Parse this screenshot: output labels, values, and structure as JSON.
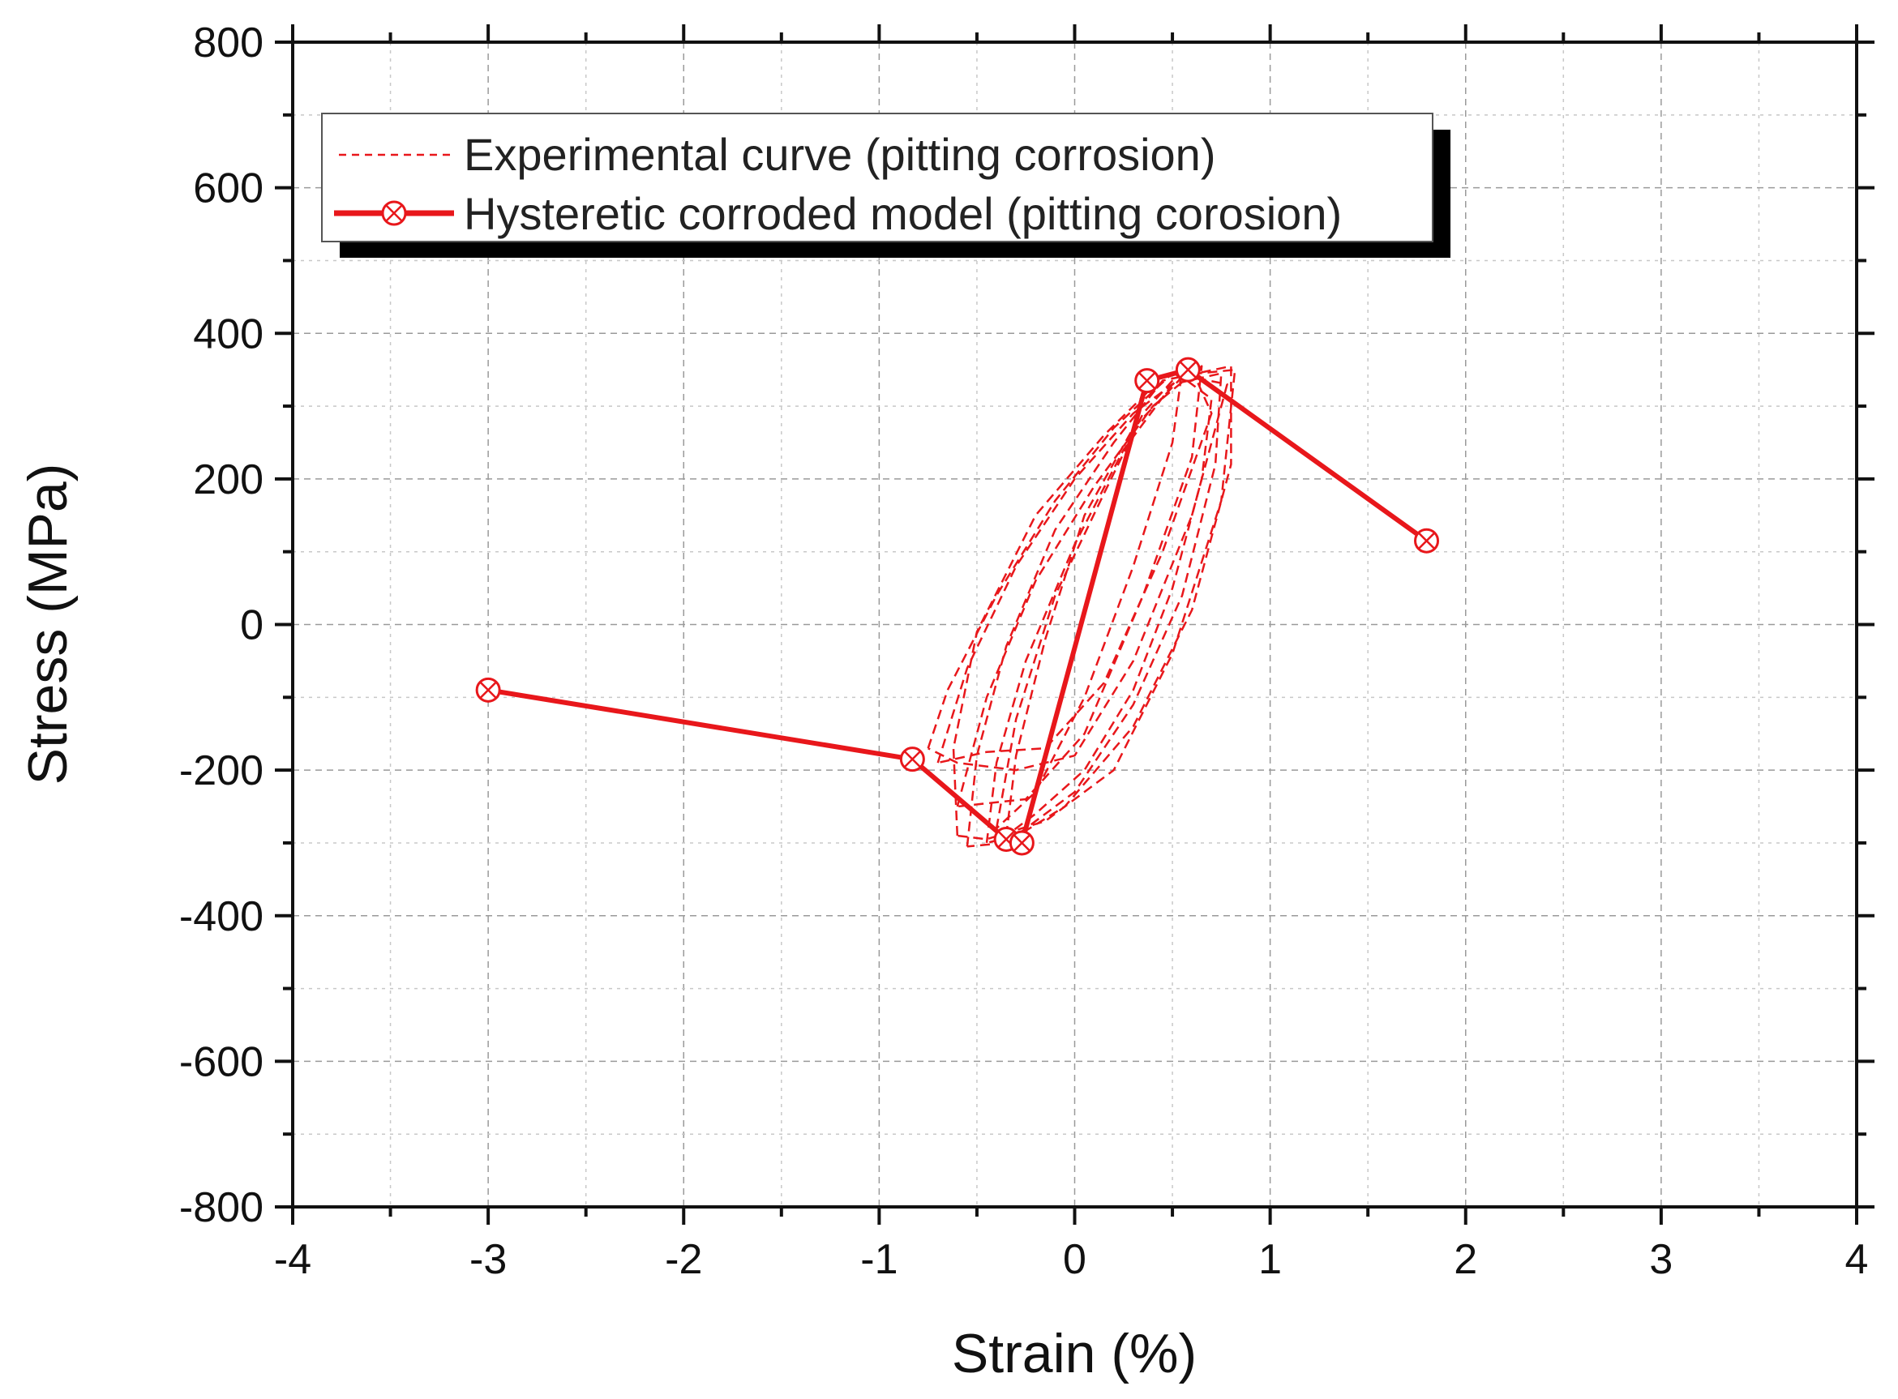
{
  "chart_data": {
    "type": "line",
    "title": "",
    "xlabel": "Strain (%)",
    "ylabel": "Stress (MPa)",
    "xlim": [
      -4,
      4
    ],
    "ylim": [
      -800,
      800
    ],
    "xticks": [
      -4,
      -3,
      -2,
      -1,
      0,
      1,
      2,
      3,
      4
    ],
    "yticks": [
      -800,
      -600,
      -400,
      -200,
      0,
      200,
      400,
      600,
      800
    ],
    "xtick_labels": [
      "-4",
      "-3",
      "-2",
      "-1",
      "0",
      "1",
      "2",
      "3",
      "4"
    ],
    "ytick_labels": [
      "-800",
      "-600",
      "-400",
      "-200",
      "0",
      "200",
      "400",
      "600",
      "800"
    ],
    "grid": true,
    "legend_position": "top-left",
    "color": "#e8171b",
    "series": [
      {
        "name": "Experimental curve (pitting corrosion)",
        "style": "dashed",
        "loops": [
          [
            [
              -0.35,
              -290
            ],
            [
              -0.3,
              -180
            ],
            [
              -0.15,
              -20
            ],
            [
              0.05,
              150
            ],
            [
              0.3,
              270
            ],
            [
              0.55,
              340
            ],
            [
              0.7,
              310
            ],
            [
              0.65,
              200
            ],
            [
              0.5,
              50
            ],
            [
              0.3,
              -90
            ],
            [
              0.05,
              -200
            ],
            [
              -0.2,
              -260
            ],
            [
              -0.35,
              -290
            ]
          ],
          [
            [
              -0.45,
              -300
            ],
            [
              -0.4,
              -190
            ],
            [
              -0.25,
              -50
            ],
            [
              0.0,
              110
            ],
            [
              0.25,
              240
            ],
            [
              0.5,
              330
            ],
            [
              0.75,
              345
            ],
            [
              0.72,
              220
            ],
            [
              0.55,
              40
            ],
            [
              0.3,
              -110
            ],
            [
              0.0,
              -230
            ],
            [
              -0.3,
              -290
            ],
            [
              -0.45,
              -300
            ]
          ],
          [
            [
              -0.55,
              -305
            ],
            [
              -0.5,
              -180
            ],
            [
              -0.35,
              -30
            ],
            [
              -0.1,
              130
            ],
            [
              0.2,
              250
            ],
            [
              0.45,
              335
            ],
            [
              0.8,
              355
            ],
            [
              0.8,
              220
            ],
            [
              0.6,
              20
            ],
            [
              0.3,
              -140
            ],
            [
              -0.05,
              -250
            ],
            [
              -0.35,
              -300
            ],
            [
              -0.55,
              -305
            ]
          ],
          [
            [
              -0.6,
              -290
            ],
            [
              -0.62,
              -170
            ],
            [
              -0.5,
              -10
            ],
            [
              -0.2,
              150
            ],
            [
              0.15,
              260
            ],
            [
              0.45,
              340
            ],
            [
              0.82,
              350
            ],
            [
              0.75,
              170
            ],
            [
              0.5,
              -40
            ],
            [
              0.2,
              -200
            ],
            [
              -0.15,
              -270
            ],
            [
              -0.45,
              -295
            ],
            [
              -0.6,
              -290
            ]
          ],
          [
            [
              -0.75,
              -170
            ],
            [
              -0.65,
              -90
            ],
            [
              -0.4,
              40
            ],
            [
              -0.1,
              170
            ],
            [
              0.2,
              270
            ],
            [
              0.5,
              345
            ],
            [
              0.78,
              330
            ],
            [
              0.6,
              150
            ],
            [
              0.3,
              -50
            ],
            [
              0.0,
              -180
            ],
            [
              -0.3,
              -200
            ],
            [
              -0.6,
              -190
            ],
            [
              -0.75,
              -170
            ]
          ],
          [
            [
              -0.7,
              -190
            ],
            [
              -0.55,
              -60
            ],
            [
              -0.3,
              80
            ],
            [
              0.0,
              200
            ],
            [
              0.3,
              290
            ],
            [
              0.6,
              350
            ],
            [
              0.7,
              290
            ],
            [
              0.45,
              100
            ],
            [
              0.15,
              -80
            ],
            [
              -0.15,
              -170
            ],
            [
              -0.45,
              -175
            ],
            [
              -0.7,
              -190
            ]
          ],
          [
            [
              -0.6,
              -250
            ],
            [
              -0.45,
              -100
            ],
            [
              -0.2,
              60
            ],
            [
              0.1,
              190
            ],
            [
              0.4,
              300
            ],
            [
              0.65,
              355
            ],
            [
              0.6,
              230
            ],
            [
              0.35,
              40
            ],
            [
              0.05,
              -150
            ],
            [
              -0.25,
              -240
            ],
            [
              -0.6,
              -250
            ]
          ],
          [
            [
              -0.4,
              -280
            ],
            [
              -0.3,
              -130
            ],
            [
              -0.1,
              40
            ],
            [
              0.15,
              180
            ],
            [
              0.35,
              290
            ],
            [
              0.55,
              350
            ],
            [
              0.5,
              250
            ],
            [
              0.3,
              80
            ],
            [
              0.05,
              -100
            ],
            [
              -0.2,
              -230
            ],
            [
              -0.4,
              -280
            ]
          ]
        ]
      },
      {
        "name": "Hysteretic corroded model (pitting corosion)",
        "style": "solid",
        "marker": "circle-cross",
        "points": [
          [
            -3.0,
            -90
          ],
          [
            -0.83,
            -185
          ],
          [
            -0.35,
            -295
          ],
          [
            -0.27,
            -300
          ],
          [
            0.37,
            335
          ],
          [
            0.58,
            350
          ],
          [
            1.8,
            115
          ]
        ],
        "marker_points": [
          [
            -3.0,
            -90
          ],
          [
            -0.83,
            -185
          ],
          [
            -0.35,
            -295
          ],
          [
            -0.27,
            -300
          ],
          [
            0.37,
            335
          ],
          [
            0.58,
            350
          ],
          [
            1.8,
            115
          ]
        ]
      }
    ]
  }
}
